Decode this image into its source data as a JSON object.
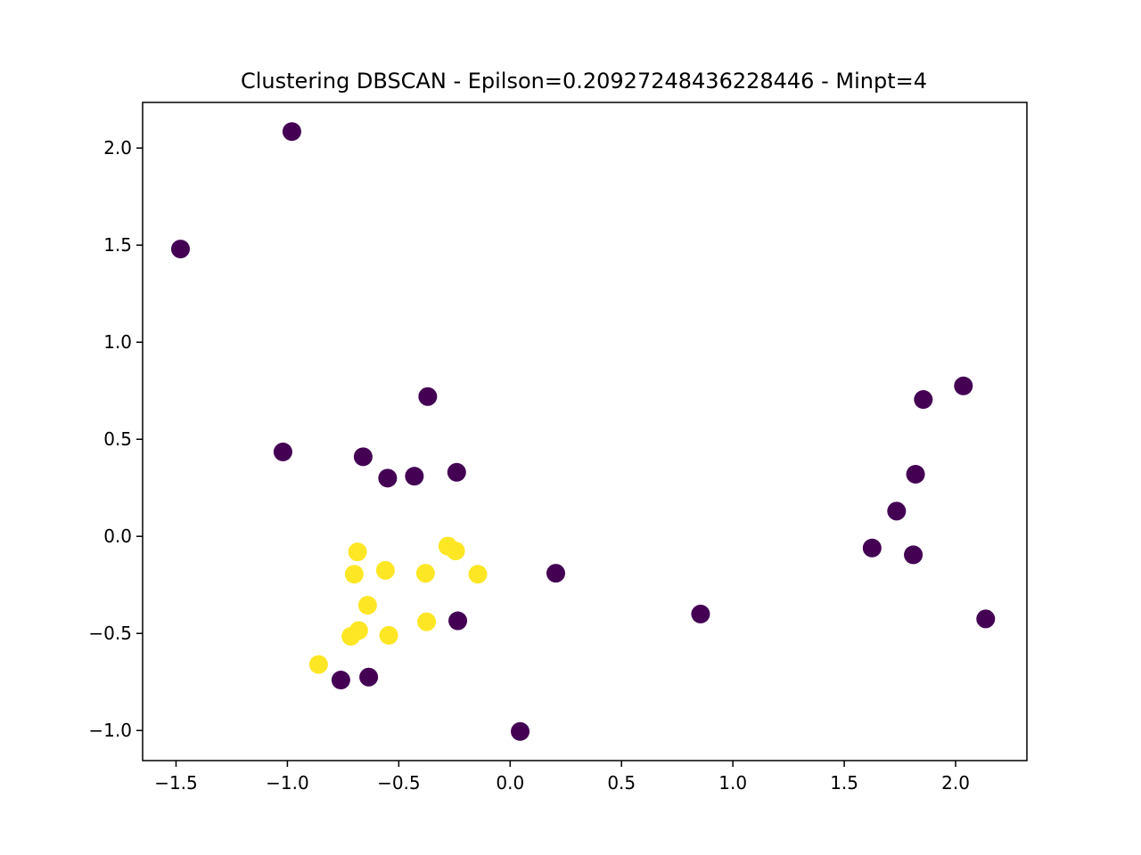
{
  "chart_data": {
    "type": "scatter",
    "title": "Clustering DBSCAN - Epilson=0.20927248436228446 - Minpt=4",
    "xlabel": "",
    "ylabel": "",
    "xlim": [
      -1.65,
      2.32
    ],
    "ylim": [
      -1.155,
      2.235
    ],
    "grid": false,
    "xticks": [
      -1.5,
      -1.0,
      -0.5,
      0.0,
      0.5,
      1.0,
      1.5,
      2.0
    ],
    "xtick_labels": [
      "−1.5",
      "−1.0",
      "−0.5",
      "0.0",
      "0.5",
      "1.0",
      "1.5",
      "2.0"
    ],
    "yticks": [
      -1.0,
      -0.5,
      0.0,
      0.5,
      1.0,
      1.5,
      2.0
    ],
    "ytick_labels": [
      "−1.0",
      "−0.5",
      "0.0",
      "0.5",
      "1.0",
      "1.5",
      "2.0"
    ],
    "colors": {
      "noise": "#440154",
      "cluster_0": "#fde725"
    },
    "series": [
      {
        "color_key": "noise",
        "points": [
          [
            -0.98,
            2.085
          ],
          [
            -1.48,
            1.48
          ],
          [
            -1.02,
            0.435
          ],
          [
            -0.66,
            0.41
          ],
          [
            -0.55,
            0.3
          ],
          [
            -0.43,
            0.31
          ],
          [
            -0.37,
            0.72
          ],
          [
            -0.24,
            0.33
          ],
          [
            0.205,
            -0.19
          ],
          [
            0.855,
            -0.4
          ],
          [
            -0.235,
            -0.435
          ],
          [
            -0.76,
            -0.74
          ],
          [
            -0.635,
            -0.725
          ],
          [
            0.045,
            -1.005
          ],
          [
            1.625,
            -0.06
          ],
          [
            1.735,
            0.13
          ],
          [
            1.82,
            0.32
          ],
          [
            1.81,
            -0.095
          ],
          [
            1.855,
            0.705
          ],
          [
            2.035,
            0.775
          ],
          [
            2.135,
            -0.425
          ]
        ]
      },
      {
        "color_key": "cluster_0",
        "points": [
          [
            -0.685,
            -0.08
          ],
          [
            -0.28,
            -0.05
          ],
          [
            -0.245,
            -0.075
          ],
          [
            -0.7,
            -0.195
          ],
          [
            -0.56,
            -0.175
          ],
          [
            -0.38,
            -0.19
          ],
          [
            -0.145,
            -0.195
          ],
          [
            -0.64,
            -0.355
          ],
          [
            -0.375,
            -0.44
          ],
          [
            -0.68,
            -0.485
          ],
          [
            -0.715,
            -0.515
          ],
          [
            -0.545,
            -0.51
          ],
          [
            -0.86,
            -0.66
          ]
        ]
      }
    ]
  }
}
